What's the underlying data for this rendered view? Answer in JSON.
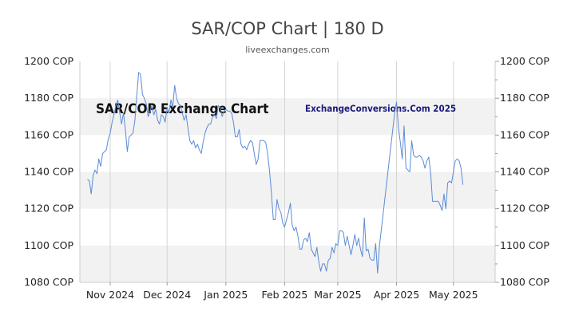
{
  "title": "SAR/COP Chart | 180 D",
  "subtitle": "liveexchanges.com",
  "colors": {
    "line": "#5b8bd6",
    "band": "#f2f2f2",
    "grid": "#d4d4d4",
    "axis": "#cccccc",
    "watermark_right": "#1a1a7a"
  },
  "chart_data": {
    "type": "line",
    "title": "SAR/COP Chart | 180 D",
    "subtitle": "liveexchanges.com",
    "xlabel": "",
    "ylabel": "",
    "ylim": [
      1080,
      1200
    ],
    "y_ticks": [
      1080,
      1100,
      1120,
      1140,
      1160,
      1180,
      1200
    ],
    "y_tick_labels": [
      "1080 COP",
      "1100 COP",
      "1120 COP",
      "1140 COP",
      "1160 COP",
      "1180 COP",
      "1200 COP"
    ],
    "x_range": [
      "2024-10-16",
      "2025-05-23"
    ],
    "x_ticks": [
      {
        "date": "2024-11-01",
        "label": "Nov 2024"
      },
      {
        "date": "2024-12-01",
        "label": "Dec 2024"
      },
      {
        "date": "2025-01-01",
        "label": "Jan 2025"
      },
      {
        "date": "2025-02-01",
        "label": "Feb 2025"
      },
      {
        "date": "2025-03-01",
        "label": "Mar 2025"
      },
      {
        "date": "2025-04-01",
        "label": "Apr 2025"
      },
      {
        "date": "2025-05-01",
        "label": "May 2025"
      }
    ],
    "grid": true,
    "annotations": [
      "SAR/COP Exchange Chart",
      "ExchangeConversions.Com 2025"
    ],
    "series": [
      {
        "points": [
          [
            "2024-10-20",
            1136
          ],
          [
            "2024-10-21",
            1135
          ],
          [
            "2024-10-22",
            1128
          ],
          [
            "2024-10-23",
            1138
          ],
          [
            "2024-10-24",
            1141
          ],
          [
            "2024-10-25",
            1139
          ],
          [
            "2024-10-26",
            1147
          ],
          [
            "2024-10-27",
            1143
          ],
          [
            "2024-10-28",
            1150
          ],
          [
            "2024-10-29",
            1151
          ],
          [
            "2024-10-30",
            1152
          ],
          [
            "2024-10-31",
            1158
          ],
          [
            "2024-11-01",
            1161
          ],
          [
            "2024-11-02",
            1167
          ],
          [
            "2024-11-03",
            1171
          ],
          [
            "2024-11-04",
            1176
          ],
          [
            "2024-11-05",
            1179
          ],
          [
            "2024-11-06",
            1172
          ],
          [
            "2024-11-07",
            1166
          ],
          [
            "2024-11-08",
            1172
          ],
          [
            "2024-11-09",
            1163
          ],
          [
            "2024-11-10",
            1151
          ],
          [
            "2024-11-11",
            1159
          ],
          [
            "2024-11-12",
            1160
          ],
          [
            "2024-11-13",
            1161
          ],
          [
            "2024-11-14",
            1168
          ],
          [
            "2024-11-15",
            1181
          ],
          [
            "2024-11-16",
            1194
          ],
          [
            "2024-11-17",
            1193
          ],
          [
            "2024-11-18",
            1182
          ],
          [
            "2024-11-19",
            1180
          ],
          [
            "2024-11-20",
            1177
          ],
          [
            "2024-11-21",
            1170
          ],
          [
            "2024-11-22",
            1173
          ],
          [
            "2024-11-23",
            1176
          ],
          [
            "2024-11-24",
            1171
          ],
          [
            "2024-11-25",
            1174
          ],
          [
            "2024-11-26",
            1168
          ],
          [
            "2024-11-27",
            1166
          ],
          [
            "2024-11-28",
            1171
          ],
          [
            "2024-11-29",
            1170
          ],
          [
            "2024-11-30",
            1167
          ],
          [
            "2024-12-01",
            1175
          ],
          [
            "2024-12-02",
            1172
          ],
          [
            "2024-12-03",
            1179
          ],
          [
            "2024-12-04",
            1175
          ],
          [
            "2024-12-05",
            1187
          ],
          [
            "2024-12-06",
            1180
          ],
          [
            "2024-12-07",
            1177
          ],
          [
            "2024-12-08",
            1176
          ],
          [
            "2024-12-09",
            1172
          ],
          [
            "2024-12-10",
            1168
          ],
          [
            "2024-12-11",
            1171
          ],
          [
            "2024-12-12",
            1164
          ],
          [
            "2024-12-13",
            1157
          ],
          [
            "2024-12-14",
            1155
          ],
          [
            "2024-12-15",
            1157
          ],
          [
            "2024-12-16",
            1153
          ],
          [
            "2024-12-17",
            1155
          ],
          [
            "2024-12-18",
            1152
          ],
          [
            "2024-12-19",
            1150
          ],
          [
            "2024-12-20",
            1156
          ],
          [
            "2024-12-21",
            1161
          ],
          [
            "2024-12-22",
            1164
          ],
          [
            "2024-12-23",
            1166
          ],
          [
            "2024-12-24",
            1166
          ],
          [
            "2024-12-25",
            1170
          ],
          [
            "2024-12-26",
            1171
          ],
          [
            "2024-12-27",
            1169
          ],
          [
            "2024-12-28",
            1176
          ],
          [
            "2024-12-29",
            1175
          ],
          [
            "2024-12-30",
            1170
          ],
          [
            "2024-12-31",
            1173
          ],
          [
            "2025-01-01",
            1174
          ],
          [
            "2025-01-02",
            1173
          ],
          [
            "2025-01-03",
            1173
          ],
          [
            "2025-01-04",
            1172
          ],
          [
            "2025-01-05",
            1167
          ],
          [
            "2025-01-06",
            1159
          ],
          [
            "2025-01-07",
            1159
          ],
          [
            "2025-01-08",
            1163
          ],
          [
            "2025-01-09",
            1155
          ],
          [
            "2025-01-10",
            1153
          ],
          [
            "2025-01-11",
            1154
          ],
          [
            "2025-01-12",
            1152
          ],
          [
            "2025-01-13",
            1155
          ],
          [
            "2025-01-14",
            1157
          ],
          [
            "2025-01-15",
            1156
          ],
          [
            "2025-01-16",
            1150
          ],
          [
            "2025-01-17",
            1144
          ],
          [
            "2025-01-18",
            1147
          ],
          [
            "2025-01-19",
            1157
          ],
          [
            "2025-01-20",
            1157
          ],
          [
            "2025-01-21",
            1157
          ],
          [
            "2025-01-22",
            1156
          ],
          [
            "2025-01-23",
            1150
          ],
          [
            "2025-01-24",
            1141
          ],
          [
            "2025-01-25",
            1129
          ],
          [
            "2025-01-26",
            1114
          ],
          [
            "2025-01-27",
            1114
          ],
          [
            "2025-01-28",
            1125
          ],
          [
            "2025-01-29",
            1120
          ],
          [
            "2025-01-30",
            1118
          ],
          [
            "2025-01-31",
            1112
          ],
          [
            "2025-02-01",
            1110
          ],
          [
            "2025-02-02",
            1114
          ],
          [
            "2025-02-03",
            1118
          ],
          [
            "2025-02-04",
            1123
          ],
          [
            "2025-02-05",
            1111
          ],
          [
            "2025-02-06",
            1108
          ],
          [
            "2025-02-07",
            1110
          ],
          [
            "2025-02-08",
            1105
          ],
          [
            "2025-02-09",
            1098
          ],
          [
            "2025-02-10",
            1098
          ],
          [
            "2025-02-11",
            1103
          ],
          [
            "2025-02-12",
            1104
          ],
          [
            "2025-02-13",
            1102
          ],
          [
            "2025-02-14",
            1107
          ],
          [
            "2025-02-15",
            1098
          ],
          [
            "2025-02-16",
            1096
          ],
          [
            "2025-02-17",
            1094
          ],
          [
            "2025-02-18",
            1099
          ],
          [
            "2025-02-19",
            1091
          ],
          [
            "2025-02-20",
            1086
          ],
          [
            "2025-02-21",
            1090
          ],
          [
            "2025-02-22",
            1090
          ],
          [
            "2025-02-23",
            1086
          ],
          [
            "2025-02-24",
            1092
          ],
          [
            "2025-02-25",
            1093
          ],
          [
            "2025-02-26",
            1099
          ],
          [
            "2025-02-27",
            1096
          ],
          [
            "2025-02-28",
            1101
          ],
          [
            "2025-03-01",
            1100
          ],
          [
            "2025-03-02",
            1108
          ],
          [
            "2025-03-03",
            1108
          ],
          [
            "2025-03-04",
            1107
          ],
          [
            "2025-03-05",
            1100
          ],
          [
            "2025-03-06",
            1105
          ],
          [
            "2025-03-07",
            1100
          ],
          [
            "2025-03-08",
            1095
          ],
          [
            "2025-03-09",
            1100
          ],
          [
            "2025-03-10",
            1106
          ],
          [
            "2025-03-11",
            1100
          ],
          [
            "2025-03-12",
            1104
          ],
          [
            "2025-03-13",
            1098
          ],
          [
            "2025-03-14",
            1094
          ],
          [
            "2025-03-15",
            1115
          ],
          [
            "2025-03-16",
            1097
          ],
          [
            "2025-03-17",
            1098
          ],
          [
            "2025-03-18",
            1093
          ],
          [
            "2025-03-19",
            1092
          ],
          [
            "2025-03-20",
            1092
          ],
          [
            "2025-03-21",
            1101
          ],
          [
            "2025-03-22",
            1085
          ],
          [
            "2025-03-23",
            1100
          ],
          [
            "2025-03-31",
            1172
          ],
          [
            "2025-04-01",
            1178
          ],
          [
            "2025-04-02",
            1164
          ],
          [
            "2025-04-03",
            1156
          ],
          [
            "2025-04-04",
            1147
          ],
          [
            "2025-04-05",
            1165
          ],
          [
            "2025-04-06",
            1142
          ],
          [
            "2025-04-07",
            1141
          ],
          [
            "2025-04-08",
            1140
          ],
          [
            "2025-04-09",
            1157
          ],
          [
            "2025-04-10",
            1149
          ],
          [
            "2025-04-11",
            1148
          ],
          [
            "2025-04-12",
            1148
          ],
          [
            "2025-04-13",
            1149
          ],
          [
            "2025-04-14",
            1148
          ],
          [
            "2025-04-15",
            1146
          ],
          [
            "2025-04-16",
            1142
          ],
          [
            "2025-04-17",
            1146
          ],
          [
            "2025-04-18",
            1148
          ],
          [
            "2025-04-19",
            1139
          ],
          [
            "2025-04-20",
            1124
          ],
          [
            "2025-04-21",
            1124
          ],
          [
            "2025-04-22",
            1124
          ],
          [
            "2025-04-23",
            1124
          ],
          [
            "2025-04-24",
            1122
          ],
          [
            "2025-04-25",
            1119
          ],
          [
            "2025-04-26",
            1128
          ],
          [
            "2025-04-27",
            1120
          ],
          [
            "2025-04-28",
            1134
          ],
          [
            "2025-04-29",
            1135
          ],
          [
            "2025-04-30",
            1134
          ],
          [
            "2025-05-01",
            1140
          ],
          [
            "2025-05-02",
            1146
          ],
          [
            "2025-05-03",
            1147
          ],
          [
            "2025-05-04",
            1146
          ],
          [
            "2025-05-05",
            1142
          ],
          [
            "2025-05-06",
            1133
          ]
        ]
      }
    ]
  }
}
